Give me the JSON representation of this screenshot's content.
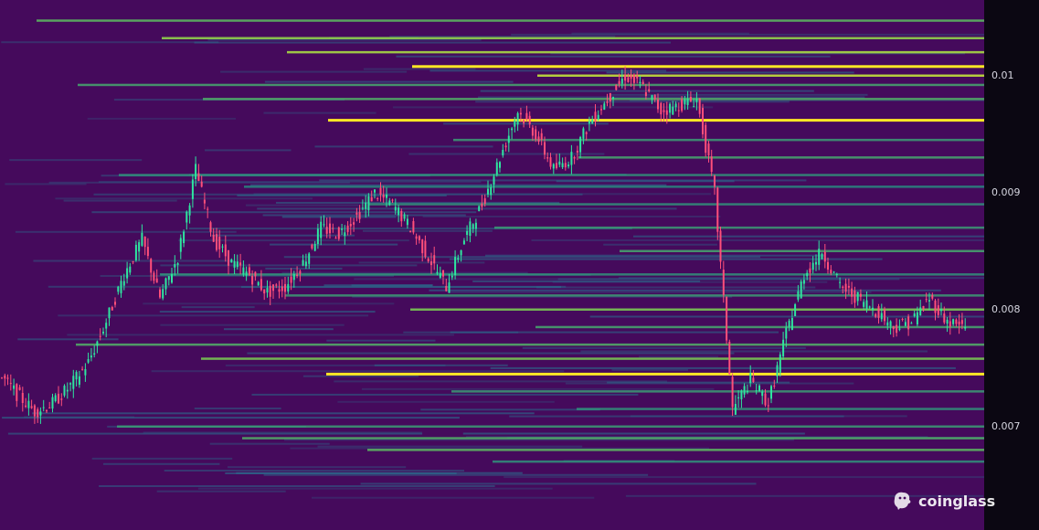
{
  "chart_data": {
    "type": "heatmap",
    "description_free": true,
    "ylim": [
      0.0063,
      0.0105
    ],
    "y_ticks": [
      {
        "value": 0.01,
        "label": "0.01"
      },
      {
        "value": 0.009,
        "label": "0.009"
      },
      {
        "value": 0.008,
        "label": "0.008"
      },
      {
        "value": 0.007,
        "label": "0.007"
      }
    ],
    "colors": {
      "background": "#450a5c",
      "axis_panel": "#0b0712",
      "level_low": "#2a6f8e",
      "level_mid": "#1f9e89",
      "level_high": "#6ece58",
      "level_max": "#fde725",
      "candle_up": "#2ee6a0",
      "candle_down": "#ff4f7a"
    },
    "price_path": [
      0.00745,
      0.00728,
      0.00713,
      0.0072,
      0.00735,
      0.00755,
      0.0079,
      0.0083,
      0.0086,
      0.0081,
      0.00845,
      0.0092,
      0.0086,
      0.0084,
      0.0083,
      0.00815,
      0.0082,
      0.0084,
      0.0087,
      0.00865,
      0.0088,
      0.009,
      0.0089,
      0.0087,
      0.00845,
      0.0082,
      0.0086,
      0.0089,
      0.0093,
      0.0097,
      0.0095,
      0.0092,
      0.0093,
      0.0096,
      0.0098,
      0.01,
      0.0099,
      0.0097,
      0.00975,
      0.0098,
      0.009,
      0.00715,
      0.0074,
      0.0072,
      0.0078,
      0.0083,
      0.0085,
      0.0082,
      0.0081,
      0.008,
      0.00785,
      0.0079,
      0.0081,
      0.0079,
      0.00785
    ],
    "liquidity_levels": [
      {
        "price": 0.01047,
        "intensity": 0.6
      },
      {
        "price": 0.01032,
        "intensity": 0.75
      },
      {
        "price": 0.0102,
        "intensity": 0.8
      },
      {
        "price": 0.01008,
        "intensity": 1.0
      },
      {
        "price": 0.01,
        "intensity": 0.85
      },
      {
        "price": 0.00992,
        "intensity": 0.5
      },
      {
        "price": 0.0098,
        "intensity": 0.55
      },
      {
        "price": 0.00962,
        "intensity": 1.0
      },
      {
        "price": 0.00945,
        "intensity": 0.45
      },
      {
        "price": 0.0093,
        "intensity": 0.5
      },
      {
        "price": 0.00915,
        "intensity": 0.4
      },
      {
        "price": 0.00905,
        "intensity": 0.35
      },
      {
        "price": 0.0089,
        "intensity": 0.4
      },
      {
        "price": 0.0087,
        "intensity": 0.45
      },
      {
        "price": 0.0085,
        "intensity": 0.5
      },
      {
        "price": 0.0083,
        "intensity": 0.4
      },
      {
        "price": 0.00812,
        "intensity": 0.45
      },
      {
        "price": 0.008,
        "intensity": 0.7
      },
      {
        "price": 0.00785,
        "intensity": 0.5
      },
      {
        "price": 0.0077,
        "intensity": 0.55
      },
      {
        "price": 0.00758,
        "intensity": 0.7
      },
      {
        "price": 0.00745,
        "intensity": 1.0
      },
      {
        "price": 0.0073,
        "intensity": 0.45
      },
      {
        "price": 0.00715,
        "intensity": 0.4
      },
      {
        "price": 0.007,
        "intensity": 0.45
      },
      {
        "price": 0.0069,
        "intensity": 0.55
      },
      {
        "price": 0.0068,
        "intensity": 0.6
      },
      {
        "price": 0.0067,
        "intensity": 0.4
      }
    ]
  },
  "branding": {
    "logo_text": "coinglass",
    "logo_icon": "coinglass-mascot-icon"
  }
}
